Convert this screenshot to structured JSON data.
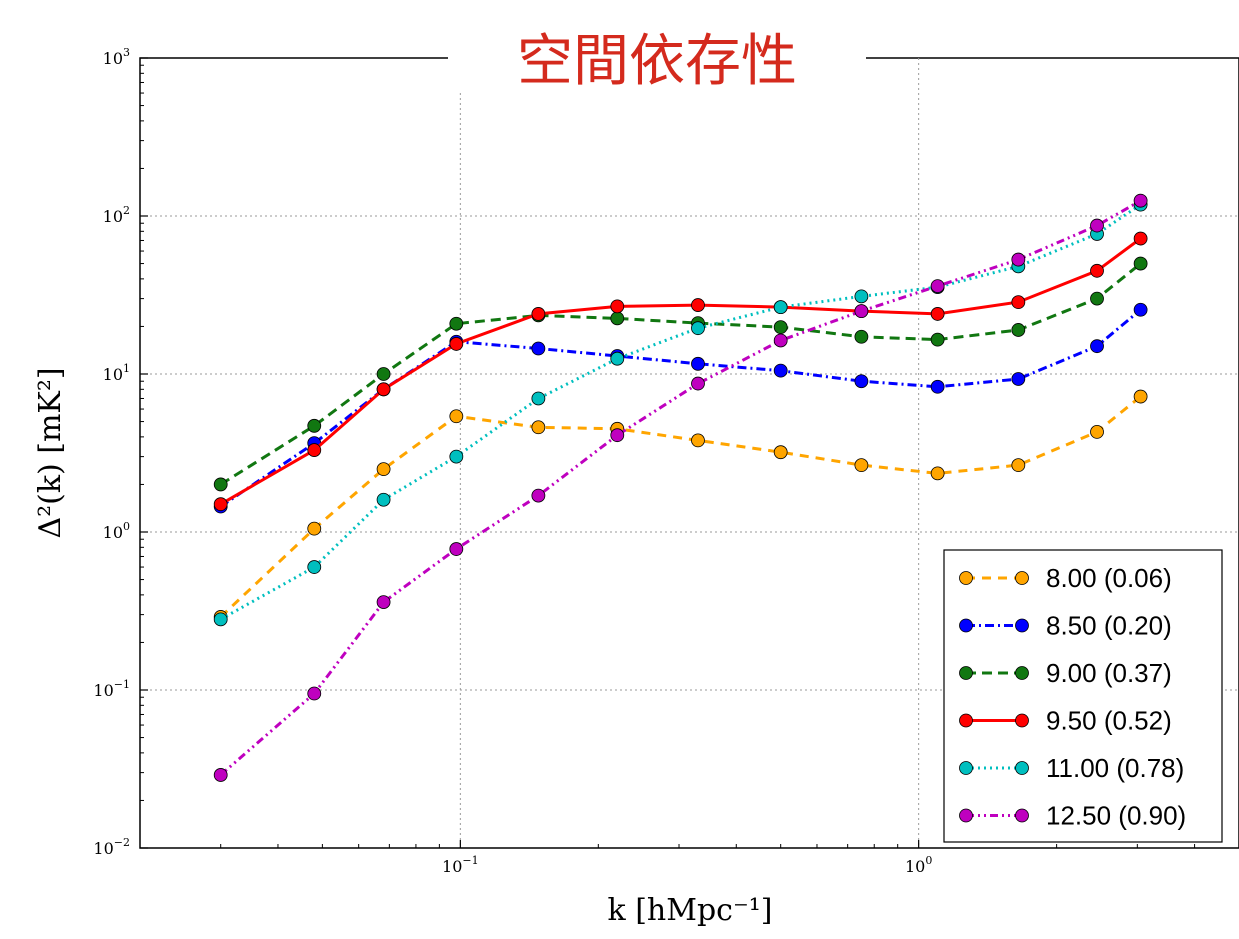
{
  "title": "空間依存性",
  "chart_data": {
    "type": "line",
    "xlabel": "k [hMpc⁻¹]",
    "ylabel": "Δ²(k) [mK²]",
    "xscale": "log",
    "yscale": "log",
    "xlim": [
      0.02,
      5.0
    ],
    "ylim": [
      0.01,
      1000
    ],
    "grid": true,
    "legend_position": "lower-right",
    "x_ticks": [
      {
        "value": 0.1,
        "base": "10",
        "exp": "−1"
      },
      {
        "value": 1,
        "base": "10",
        "exp": "0"
      }
    ],
    "y_ticks": [
      {
        "value": 0.01,
        "base": "10",
        "exp": "−2"
      },
      {
        "value": 0.1,
        "base": "10",
        "exp": "−1"
      },
      {
        "value": 1,
        "base": "10",
        "exp": "0"
      },
      {
        "value": 10,
        "base": "10",
        "exp": "1"
      },
      {
        "value": 100,
        "base": "10",
        "exp": "2"
      },
      {
        "value": 1000,
        "base": "10",
        "exp": "3"
      }
    ],
    "x": [
      0.03,
      0.048,
      0.068,
      0.098,
      0.148,
      0.22,
      0.33,
      0.5,
      0.75,
      1.1,
      1.65,
      2.45,
      3.05
    ],
    "series": [
      {
        "name": "8.00 (0.06)",
        "color": "#ffa500",
        "dash": "9,7",
        "values": [
          0.29,
          1.05,
          2.5,
          5.4,
          4.6,
          4.5,
          3.8,
          3.2,
          2.65,
          2.35,
          2.65,
          4.3,
          7.2
        ]
      },
      {
        "name": "8.50 (0.20)",
        "color": "#0000ff",
        "dash": "9,4,2,4",
        "values": [
          1.45,
          3.65,
          8.0,
          16.0,
          14.5,
          13.0,
          11.6,
          10.5,
          9.0,
          8.3,
          9.3,
          15.0,
          25.5
        ]
      },
      {
        "name": "9.00 (0.37)",
        "color": "#117711",
        "dash": "10,6",
        "values": [
          2.0,
          4.7,
          10.0,
          20.8,
          23.5,
          22.5,
          21.0,
          19.8,
          17.2,
          16.5,
          19.0,
          30.0,
          50.0
        ]
      },
      {
        "name": "9.50 (0.52)",
        "color": "#ff0000",
        "dash": "",
        "values": [
          1.5,
          3.3,
          8.0,
          15.5,
          24.0,
          26.8,
          27.3,
          26.5,
          25.0,
          24.0,
          28.5,
          45.0,
          72.0
        ]
      },
      {
        "name": "11.00 (0.78)",
        "color": "#00bfbf",
        "dash": "2,4",
        "values": [
          0.28,
          0.6,
          1.6,
          3.0,
          7.0,
          12.5,
          19.5,
          26.5,
          31.0,
          35.5,
          48.0,
          77.0,
          118.0
        ]
      },
      {
        "name": "12.50 (0.90)",
        "color": "#bf00bf",
        "dash": "8,4,2,4,2,4",
        "values": [
          0.029,
          0.095,
          0.36,
          0.78,
          1.7,
          4.1,
          8.7,
          16.3,
          25.0,
          36.0,
          53.0,
          87.0,
          125.0
        ]
      }
    ]
  }
}
